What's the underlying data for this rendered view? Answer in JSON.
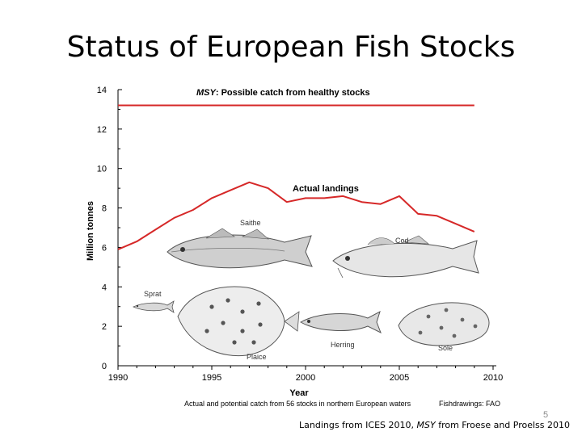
{
  "slide": {
    "title": "Status of European Fish Stocks",
    "page_number": "5",
    "source": {
      "part1": "Landings from ICES 2010, ",
      "msy": "MSY",
      "part2": " from Froese and Proelss 2010"
    }
  },
  "chart_data": {
    "type": "line",
    "xlabel": "Year",
    "ylabel": "Million tonnes",
    "xlim": [
      1990,
      2010
    ],
    "ylim": [
      0,
      14
    ],
    "x_ticks": [
      1990,
      1995,
      2000,
      2005,
      2010
    ],
    "y_ticks": [
      0,
      2,
      4,
      6,
      8,
      10,
      12,
      14
    ],
    "grid": false,
    "colors": {
      "line": "#d62828",
      "axis": "#000000",
      "text": "#000000"
    },
    "series": [
      {
        "name_italic": "MSY",
        "name": ": Possible catch from healthy stocks",
        "x": [
          1990,
          2009
        ],
        "values": [
          13.2,
          13.2
        ]
      },
      {
        "name": "Actual landings",
        "x": [
          1990,
          1991,
          1992,
          1993,
          1994,
          1995,
          1996,
          1997,
          1998,
          1999,
          2000,
          2001,
          2002,
          2003,
          2004,
          2005,
          2006,
          2007,
          2008,
          2009
        ],
        "values": [
          5.9,
          6.3,
          6.9,
          7.5,
          7.9,
          8.5,
          8.9,
          9.3,
          9.0,
          8.3,
          8.5,
          8.5,
          8.6,
          8.3,
          8.2,
          8.6,
          7.7,
          7.6,
          7.2,
          6.8
        ]
      }
    ],
    "caption": "Actual and potential catch from 56 stocks in northern European waters",
    "credit": "Fishdrawings: FAO",
    "fish_labels": [
      "Saithe",
      "Cod",
      "Sprat",
      "Plaice",
      "Herring",
      "Sole"
    ]
  }
}
